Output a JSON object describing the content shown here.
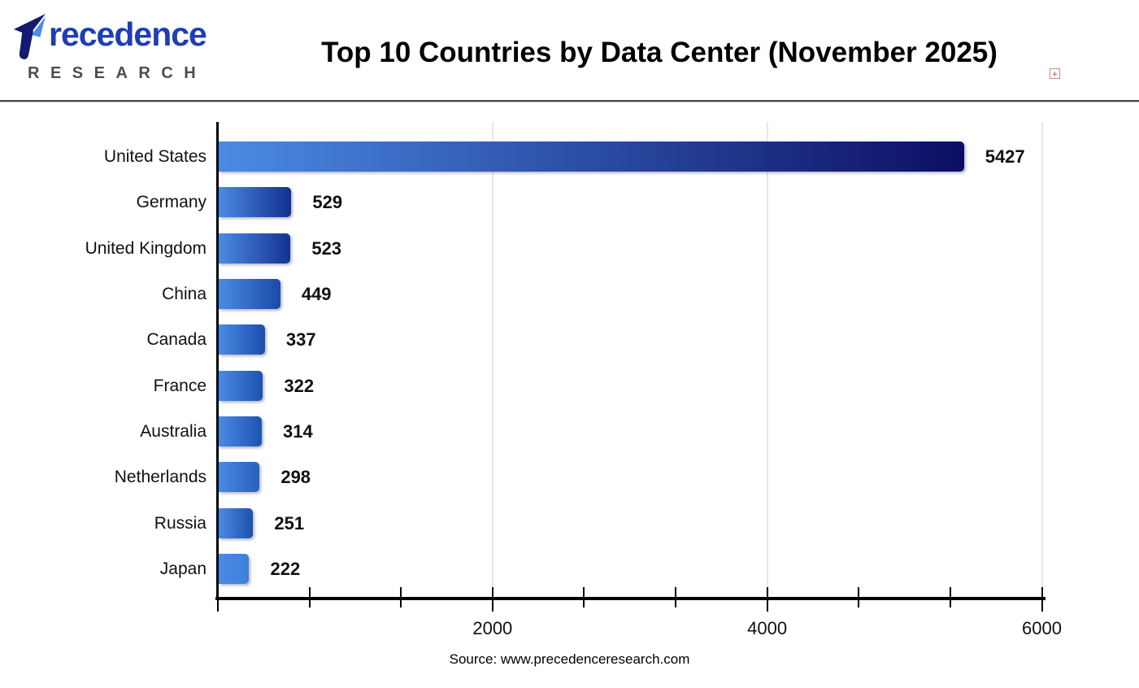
{
  "header": {
    "logo": {
      "brand_full": "Precedence",
      "brand_rest": "recedence",
      "subtitle": "RESEARCH"
    },
    "title": "Top 10 Countries by Data Center (November 2025)",
    "expand_icon_glyph": "+"
  },
  "chart_data": {
    "type": "bar",
    "orientation": "horizontal",
    "title": "Top 10 Countries by Data Center (November 2025)",
    "categories": [
      "United States",
      "Germany",
      "United Kingdom",
      "China",
      "Canada",
      "France",
      "Australia",
      "Netherlands",
      "Russia",
      "Japan"
    ],
    "values": [
      5427,
      529,
      523,
      449,
      337,
      322,
      314,
      298,
      251,
      222
    ],
    "xlim": [
      0,
      6000
    ],
    "x_tick_values": [
      2000,
      4000,
      6000
    ],
    "x_tick_labels": [
      "2000",
      "4000",
      "6000"
    ],
    "x_minor_divisions_per_major": 3,
    "grid": "vertical light-gray lines at major ticks",
    "legend": "none",
    "bar_gradient_start": "#4a8be4",
    "bar_gradient_ends": [
      "#0c0e63",
      "#122f8d",
      "#143390",
      "#1b49a7",
      "#1d4ead",
      "#1e51b0",
      "#1e52b1",
      "#2760bd",
      "#1f50a8",
      "#3c7fd9"
    ]
  },
  "footer": {
    "source": "Source: www.precedenceresearch.com"
  },
  "colors": {
    "axis": "#000000",
    "gridline": "#e7e7e7",
    "title_text": "#000000",
    "label_text": "#111111",
    "logo_navy": "#141a6e",
    "logo_blue": "#4a8fe2",
    "logo_text_blue": "#1e3db6",
    "research_gray": "#4d4d4d",
    "expand_icon_red": "#c0504d",
    "separator_gray": "#474747"
  }
}
